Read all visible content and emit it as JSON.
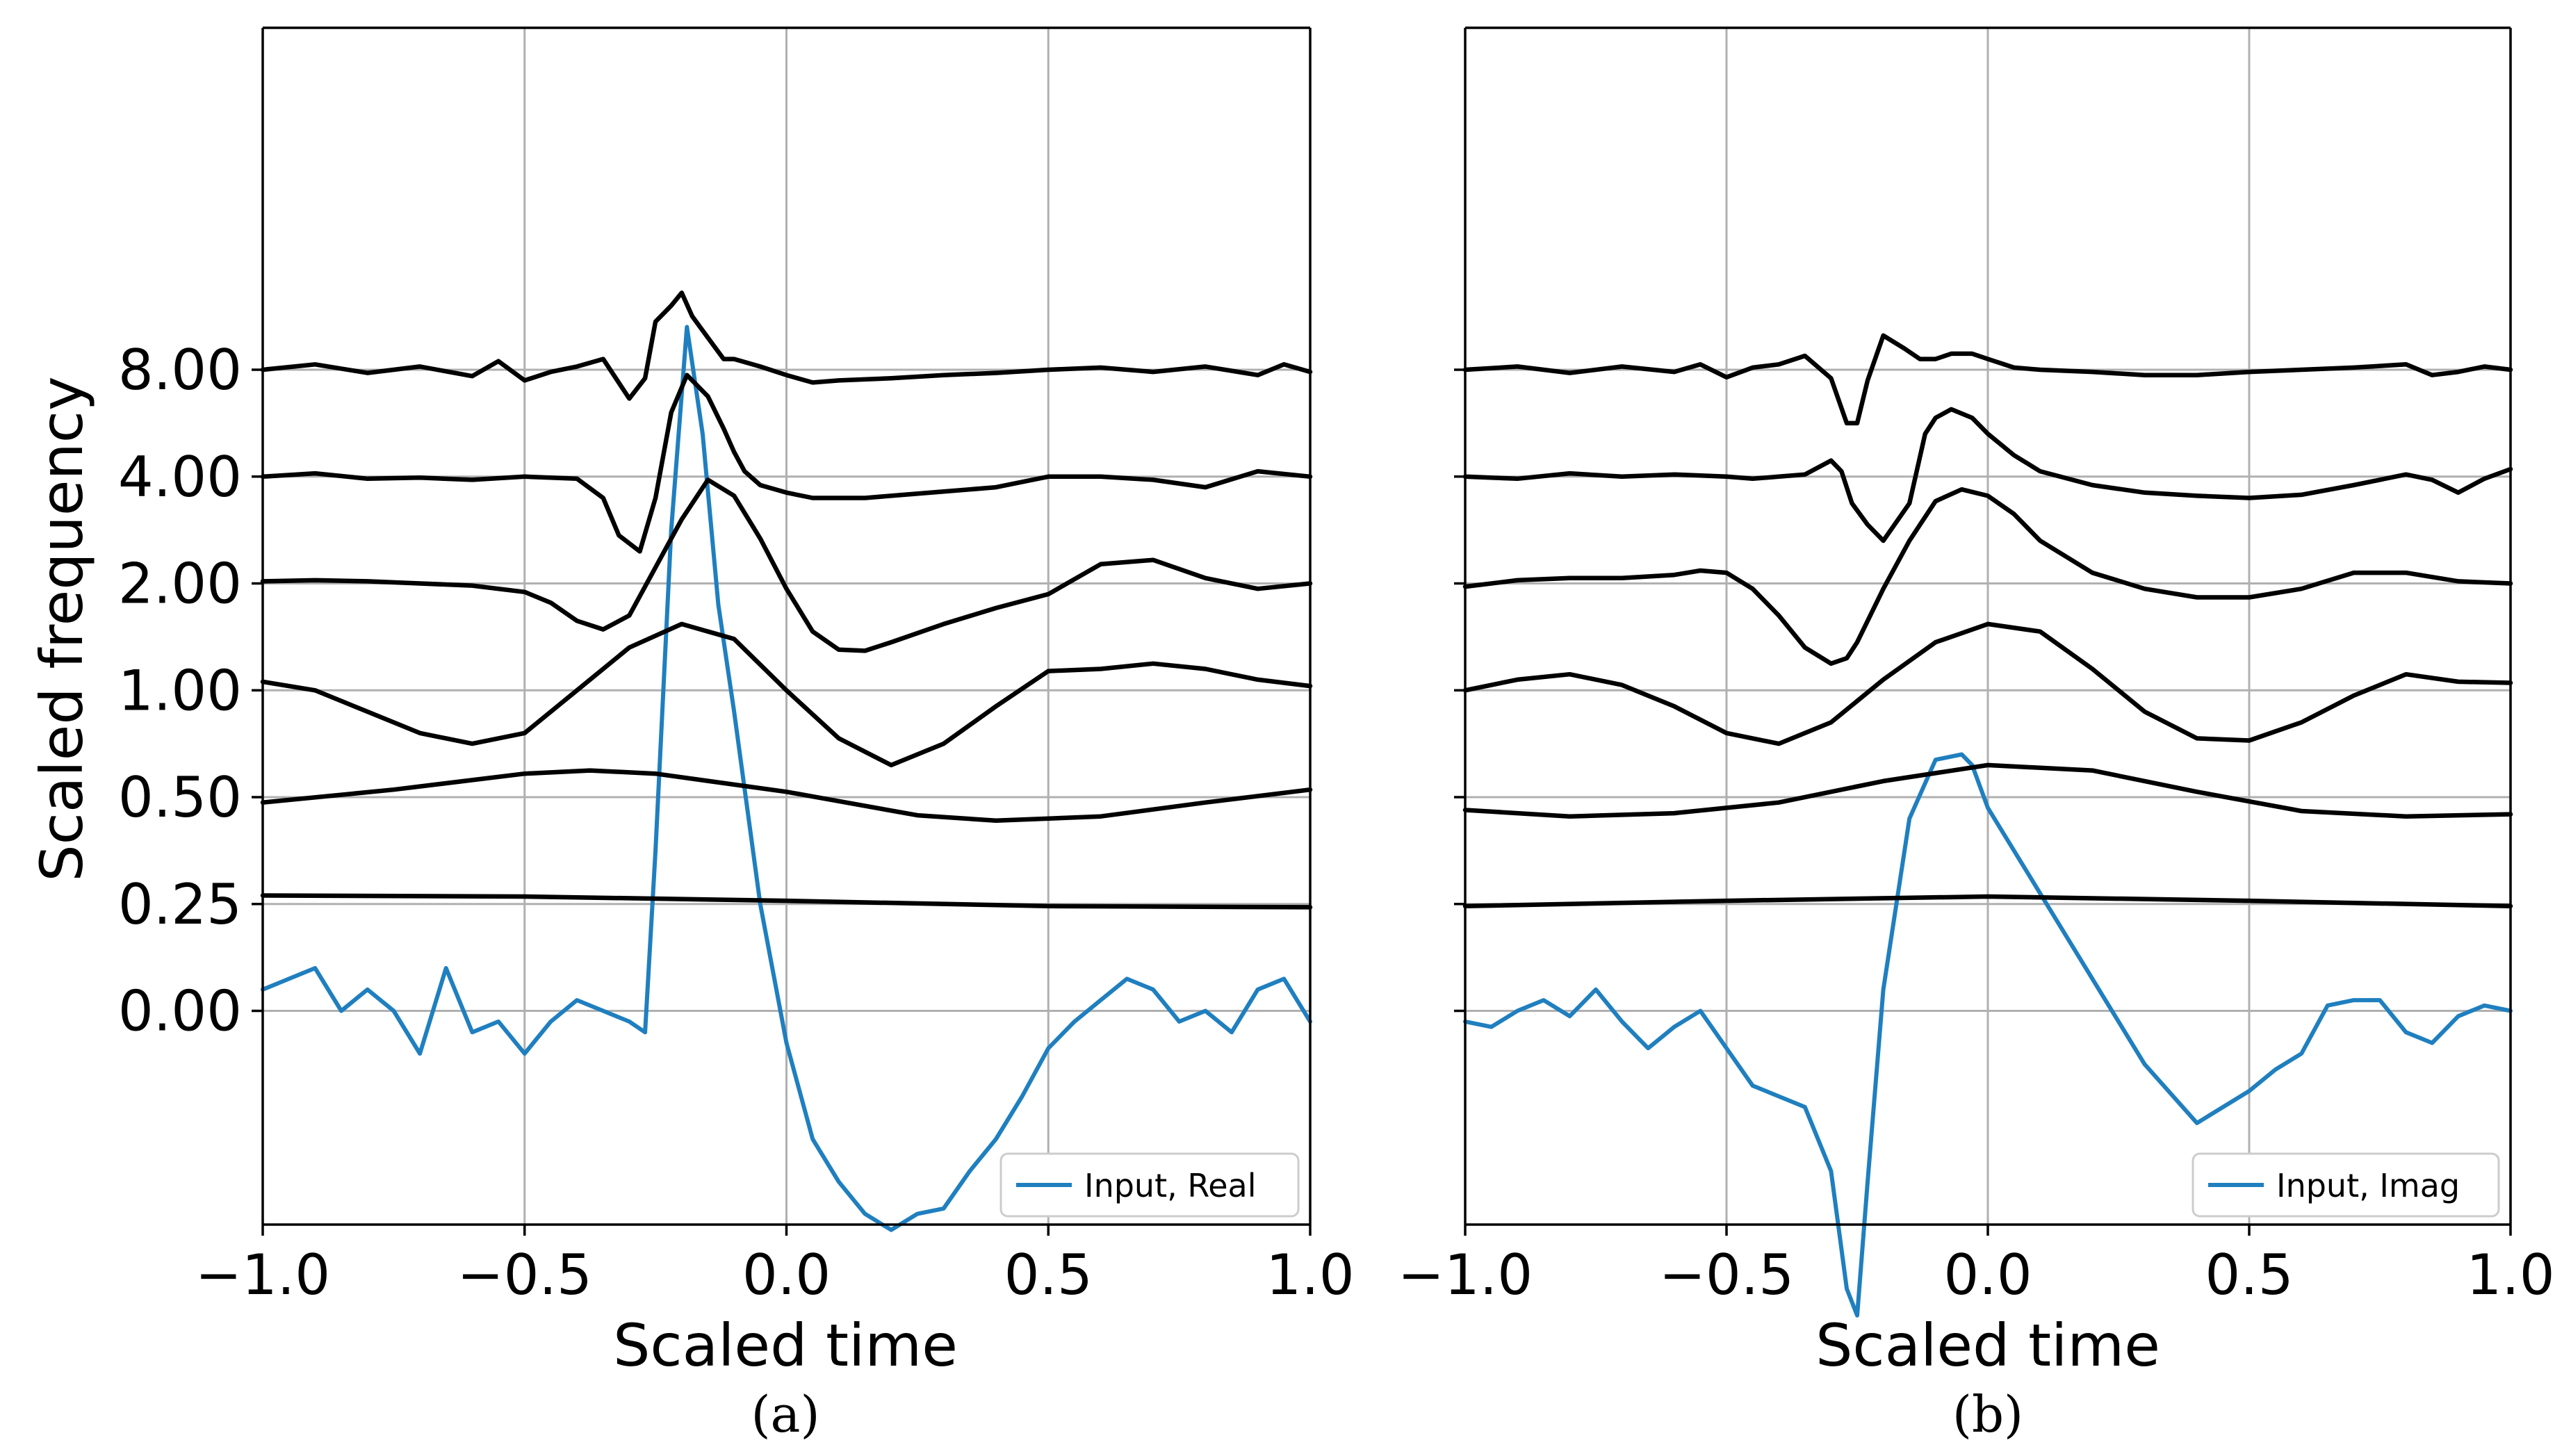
{
  "chart_data": [
    {
      "type": "line",
      "panel_label": "(a)",
      "xlabel": "Scaled time",
      "ylabel": "Scaled frequency",
      "xlim": [
        -1.0,
        1.0
      ],
      "ylim": [
        -2.0,
        9.2
      ],
      "xticks": [
        -1.0,
        -0.5,
        0.0,
        0.5,
        1.0
      ],
      "xtick_labels": [
        "−1.0",
        "−0.5",
        "0.0",
        "0.5",
        "1.0"
      ],
      "yticks": [
        0,
        1,
        2,
        3,
        4,
        5,
        6
      ],
      "ytick_labels": [
        "0.00",
        "0.25",
        "0.50",
        "1.00",
        "2.00",
        "4.00",
        "8.00"
      ],
      "grid": true,
      "legend": {
        "position": "bottom-right",
        "entries": [
          "Input, Real"
        ]
      },
      "colors": {
        "input": "#1f7fbf",
        "trace": "#000000",
        "grid": "#b0b0b0"
      },
      "series": [
        {
          "name": "Input, Real",
          "role": "input",
          "x": [
            -1.0,
            -0.95,
            -0.9,
            -0.85,
            -0.8,
            -0.75,
            -0.7,
            -0.65,
            -0.6,
            -0.55,
            -0.5,
            -0.45,
            -0.4,
            -0.35,
            -0.3,
            -0.27,
            -0.25,
            -0.22,
            -0.19,
            -0.16,
            -0.13,
            -0.1,
            -0.05,
            0.0,
            0.05,
            0.1,
            0.15,
            0.2,
            0.25,
            0.3,
            0.35,
            0.4,
            0.45,
            0.5,
            0.55,
            0.6,
            0.65,
            0.7,
            0.75,
            0.8,
            0.85,
            0.9,
            0.95,
            1.0
          ],
          "y": [
            0.2,
            0.3,
            0.4,
            0.0,
            0.2,
            0.0,
            -0.4,
            0.4,
            -0.2,
            -0.1,
            -0.4,
            -0.1,
            0.1,
            0.0,
            -0.1,
            -0.2,
            1.5,
            4.5,
            6.4,
            5.4,
            3.8,
            2.8,
            1.0,
            -0.3,
            -1.2,
            -1.6,
            -1.9,
            -2.05,
            -1.9,
            -1.85,
            -1.5,
            -1.2,
            -0.8,
            -0.35,
            -0.1,
            0.1,
            0.3,
            0.2,
            -0.1,
            0.0,
            -0.2,
            0.2,
            0.3,
            -0.1
          ]
        },
        {
          "name": "0.25",
          "role": "trace",
          "x": [
            -1.0,
            -0.5,
            0.0,
            0.5,
            1.0
          ],
          "y": [
            1.08,
            1.07,
            1.03,
            0.98,
            0.97
          ]
        },
        {
          "name": "0.50",
          "role": "trace",
          "x": [
            -1.0,
            -0.75,
            -0.5,
            -0.375,
            -0.25,
            0.0,
            0.25,
            0.4,
            0.6,
            0.8,
            1.0
          ],
          "y": [
            1.95,
            2.07,
            2.22,
            2.25,
            2.22,
            2.05,
            1.83,
            1.78,
            1.82,
            1.95,
            2.07
          ]
        },
        {
          "name": "1.00",
          "role": "trace",
          "x": [
            -1.0,
            -0.9,
            -0.8,
            -0.7,
            -0.6,
            -0.5,
            -0.4,
            -0.3,
            -0.2,
            -0.1,
            0.0,
            0.1,
            0.2,
            0.3,
            0.4,
            0.5,
            0.6,
            0.7,
            0.8,
            0.9,
            1.0
          ],
          "y": [
            3.08,
            3.0,
            2.8,
            2.6,
            2.5,
            2.6,
            3.0,
            3.4,
            3.62,
            3.48,
            3.0,
            2.55,
            2.3,
            2.5,
            2.85,
            3.18,
            3.2,
            3.25,
            3.2,
            3.1,
            3.04
          ]
        },
        {
          "name": "2.00",
          "role": "trace",
          "x": [
            -1.0,
            -0.9,
            -0.8,
            -0.7,
            -0.6,
            -0.5,
            -0.45,
            -0.4,
            -0.35,
            -0.3,
            -0.25,
            -0.2,
            -0.15,
            -0.1,
            -0.05,
            0.0,
            0.05,
            0.1,
            0.15,
            0.2,
            0.3,
            0.4,
            0.5,
            0.6,
            0.7,
            0.8,
            0.9,
            1.0
          ],
          "y": [
            4.02,
            4.03,
            4.02,
            4.0,
            3.98,
            3.92,
            3.82,
            3.65,
            3.57,
            3.7,
            4.15,
            4.6,
            4.97,
            4.82,
            4.42,
            3.95,
            3.55,
            3.38,
            3.37,
            3.45,
            3.62,
            3.77,
            3.9,
            4.18,
            4.22,
            4.05,
            3.95,
            4.0
          ]
        },
        {
          "name": "4.00",
          "role": "trace",
          "x": [
            -1.0,
            -0.9,
            -0.8,
            -0.7,
            -0.6,
            -0.5,
            -0.4,
            -0.35,
            -0.32,
            -0.28,
            -0.25,
            -0.22,
            -0.19,
            -0.15,
            -0.12,
            -0.1,
            -0.08,
            -0.05,
            0.0,
            0.05,
            0.1,
            0.15,
            0.2,
            0.3,
            0.4,
            0.5,
            0.6,
            0.7,
            0.8,
            0.9,
            1.0
          ],
          "y": [
            5.0,
            5.03,
            4.98,
            4.99,
            4.97,
            5.0,
            4.98,
            4.8,
            4.45,
            4.3,
            4.8,
            5.6,
            5.95,
            5.75,
            5.45,
            5.23,
            5.05,
            4.92,
            4.85,
            4.8,
            4.8,
            4.8,
            4.82,
            4.86,
            4.9,
            5.0,
            5.0,
            4.97,
            4.9,
            5.05,
            5.0
          ]
        },
        {
          "name": "8.00",
          "role": "trace",
          "x": [
            -1.0,
            -0.9,
            -0.8,
            -0.7,
            -0.6,
            -0.55,
            -0.5,
            -0.45,
            -0.4,
            -0.35,
            -0.3,
            -0.27,
            -0.25,
            -0.22,
            -0.2,
            -0.18,
            -0.15,
            -0.12,
            -0.1,
            -0.05,
            0.0,
            0.05,
            0.1,
            0.2,
            0.3,
            0.4,
            0.5,
            0.6,
            0.7,
            0.8,
            0.9,
            0.95,
            1.0
          ],
          "y": [
            6.0,
            6.05,
            5.97,
            6.03,
            5.94,
            6.08,
            5.9,
            5.98,
            6.03,
            6.1,
            5.73,
            5.92,
            6.45,
            6.6,
            6.72,
            6.5,
            6.3,
            6.1,
            6.1,
            6.03,
            5.95,
            5.88,
            5.9,
            5.92,
            5.95,
            5.97,
            6.0,
            6.02,
            5.98,
            6.03,
            5.95,
            6.05,
            5.98
          ]
        }
      ]
    },
    {
      "type": "line",
      "panel_label": "(b)",
      "xlabel": "Scaled time",
      "ylabel": "",
      "xlim": [
        -1.0,
        1.0
      ],
      "ylim": [
        -2.0,
        9.2
      ],
      "xticks": [
        -1.0,
        -0.5,
        0.0,
        0.5,
        1.0
      ],
      "xtick_labels": [
        "−1.0",
        "−0.5",
        "0.0",
        "0.5",
        "1.0"
      ],
      "yticks": [
        0,
        1,
        2,
        3,
        4,
        5,
        6
      ],
      "ytick_labels": [],
      "grid": true,
      "legend": {
        "position": "bottom-right",
        "entries": [
          "Input, Imag"
        ]
      },
      "colors": {
        "input": "#1f7fbf",
        "trace": "#000000",
        "grid": "#b0b0b0"
      },
      "series": [
        {
          "name": "Input, Imag",
          "role": "input",
          "x": [
            -1.0,
            -0.95,
            -0.9,
            -0.85,
            -0.8,
            -0.75,
            -0.7,
            -0.65,
            -0.6,
            -0.55,
            -0.5,
            -0.45,
            -0.4,
            -0.35,
            -0.3,
            -0.27,
            -0.25,
            -0.23,
            -0.2,
            -0.15,
            -0.1,
            -0.05,
            -0.03,
            0.0,
            0.05,
            0.1,
            0.15,
            0.2,
            0.3,
            0.4,
            0.5,
            0.55,
            0.6,
            0.65,
            0.7,
            0.75,
            0.8,
            0.85,
            0.9,
            0.95,
            1.0
          ],
          "y": [
            -0.1,
            -0.15,
            0.0,
            0.1,
            -0.05,
            0.2,
            -0.1,
            -0.35,
            -0.15,
            0.0,
            -0.35,
            -0.7,
            -0.8,
            -0.9,
            -1.5,
            -2.6,
            -2.85,
            -1.6,
            0.2,
            1.8,
            2.35,
            2.4,
            2.3,
            1.9,
            1.5,
            1.1,
            0.7,
            0.3,
            -0.5,
            -1.05,
            -0.75,
            -0.55,
            -0.4,
            0.05,
            0.1,
            0.1,
            -0.2,
            -0.3,
            -0.05,
            0.05,
            0.0
          ]
        },
        {
          "name": "0.25",
          "role": "trace",
          "x": [
            -1.0,
            -0.5,
            0.0,
            0.5,
            1.0
          ],
          "y": [
            0.98,
            1.03,
            1.07,
            1.03,
            0.98
          ]
        },
        {
          "name": "0.50",
          "role": "trace",
          "x": [
            -1.0,
            -0.8,
            -0.6,
            -0.4,
            -0.2,
            0.0,
            0.2,
            0.4,
            0.6,
            0.8,
            1.0
          ],
          "y": [
            1.88,
            1.82,
            1.85,
            1.95,
            2.15,
            2.3,
            2.25,
            2.05,
            1.87,
            1.82,
            1.84
          ]
        },
        {
          "name": "1.00",
          "role": "trace",
          "x": [
            -1.0,
            -0.9,
            -0.8,
            -0.7,
            -0.6,
            -0.5,
            -0.4,
            -0.3,
            -0.2,
            -0.1,
            0.0,
            0.1,
            0.2,
            0.3,
            0.4,
            0.5,
            0.6,
            0.7,
            0.8,
            0.9,
            1.0
          ],
          "y": [
            3.0,
            3.1,
            3.15,
            3.05,
            2.85,
            2.6,
            2.5,
            2.7,
            3.1,
            3.45,
            3.62,
            3.55,
            3.2,
            2.8,
            2.55,
            2.53,
            2.7,
            2.95,
            3.15,
            3.08,
            3.07
          ]
        },
        {
          "name": "2.00",
          "role": "trace",
          "x": [
            -1.0,
            -0.9,
            -0.8,
            -0.7,
            -0.6,
            -0.55,
            -0.5,
            -0.45,
            -0.4,
            -0.35,
            -0.3,
            -0.27,
            -0.25,
            -0.2,
            -0.15,
            -0.1,
            -0.05,
            0.0,
            0.05,
            0.1,
            0.2,
            0.3,
            0.4,
            0.5,
            0.6,
            0.7,
            0.8,
            0.9,
            1.0
          ],
          "y": [
            3.97,
            4.03,
            4.05,
            4.05,
            4.08,
            4.12,
            4.1,
            3.95,
            3.7,
            3.4,
            3.25,
            3.3,
            3.45,
            3.95,
            4.4,
            4.77,
            4.88,
            4.82,
            4.65,
            4.4,
            4.1,
            3.95,
            3.87,
            3.87,
            3.95,
            4.1,
            4.1,
            4.02,
            4.0
          ]
        },
        {
          "name": "4.00",
          "role": "trace",
          "x": [
            -1.0,
            -0.9,
            -0.8,
            -0.7,
            -0.6,
            -0.5,
            -0.45,
            -0.4,
            -0.35,
            -0.3,
            -0.28,
            -0.26,
            -0.23,
            -0.2,
            -0.15,
            -0.12,
            -0.1,
            -0.07,
            -0.03,
            0.0,
            0.05,
            0.1,
            0.2,
            0.3,
            0.4,
            0.5,
            0.6,
            0.7,
            0.8,
            0.85,
            0.9,
            0.95,
            1.0
          ],
          "y": [
            5.0,
            4.98,
            5.03,
            5.0,
            5.02,
            5.0,
            4.98,
            5.0,
            5.02,
            5.15,
            5.05,
            4.75,
            4.55,
            4.4,
            4.75,
            5.4,
            5.55,
            5.63,
            5.55,
            5.4,
            5.2,
            5.05,
            4.92,
            4.85,
            4.82,
            4.8,
            4.83,
            4.92,
            5.02,
            4.97,
            4.85,
            4.98,
            5.07
          ]
        },
        {
          "name": "8.00",
          "role": "trace",
          "x": [
            -1.0,
            -0.9,
            -0.8,
            -0.7,
            -0.6,
            -0.55,
            -0.5,
            -0.45,
            -0.4,
            -0.35,
            -0.3,
            -0.27,
            -0.25,
            -0.23,
            -0.2,
            -0.16,
            -0.13,
            -0.1,
            -0.07,
            -0.03,
            0.0,
            0.05,
            0.1,
            0.2,
            0.3,
            0.4,
            0.5,
            0.6,
            0.7,
            0.8,
            0.85,
            0.9,
            0.95,
            1.0
          ],
          "y": [
            6.0,
            6.03,
            5.97,
            6.03,
            5.98,
            6.05,
            5.93,
            6.02,
            6.05,
            6.13,
            5.92,
            5.5,
            5.5,
            5.9,
            6.32,
            6.2,
            6.1,
            6.1,
            6.15,
            6.15,
            6.1,
            6.02,
            6.0,
            5.98,
            5.95,
            5.95,
            5.98,
            6.0,
            6.02,
            6.05,
            5.95,
            5.98,
            6.03,
            6.0
          ]
        }
      ]
    }
  ]
}
